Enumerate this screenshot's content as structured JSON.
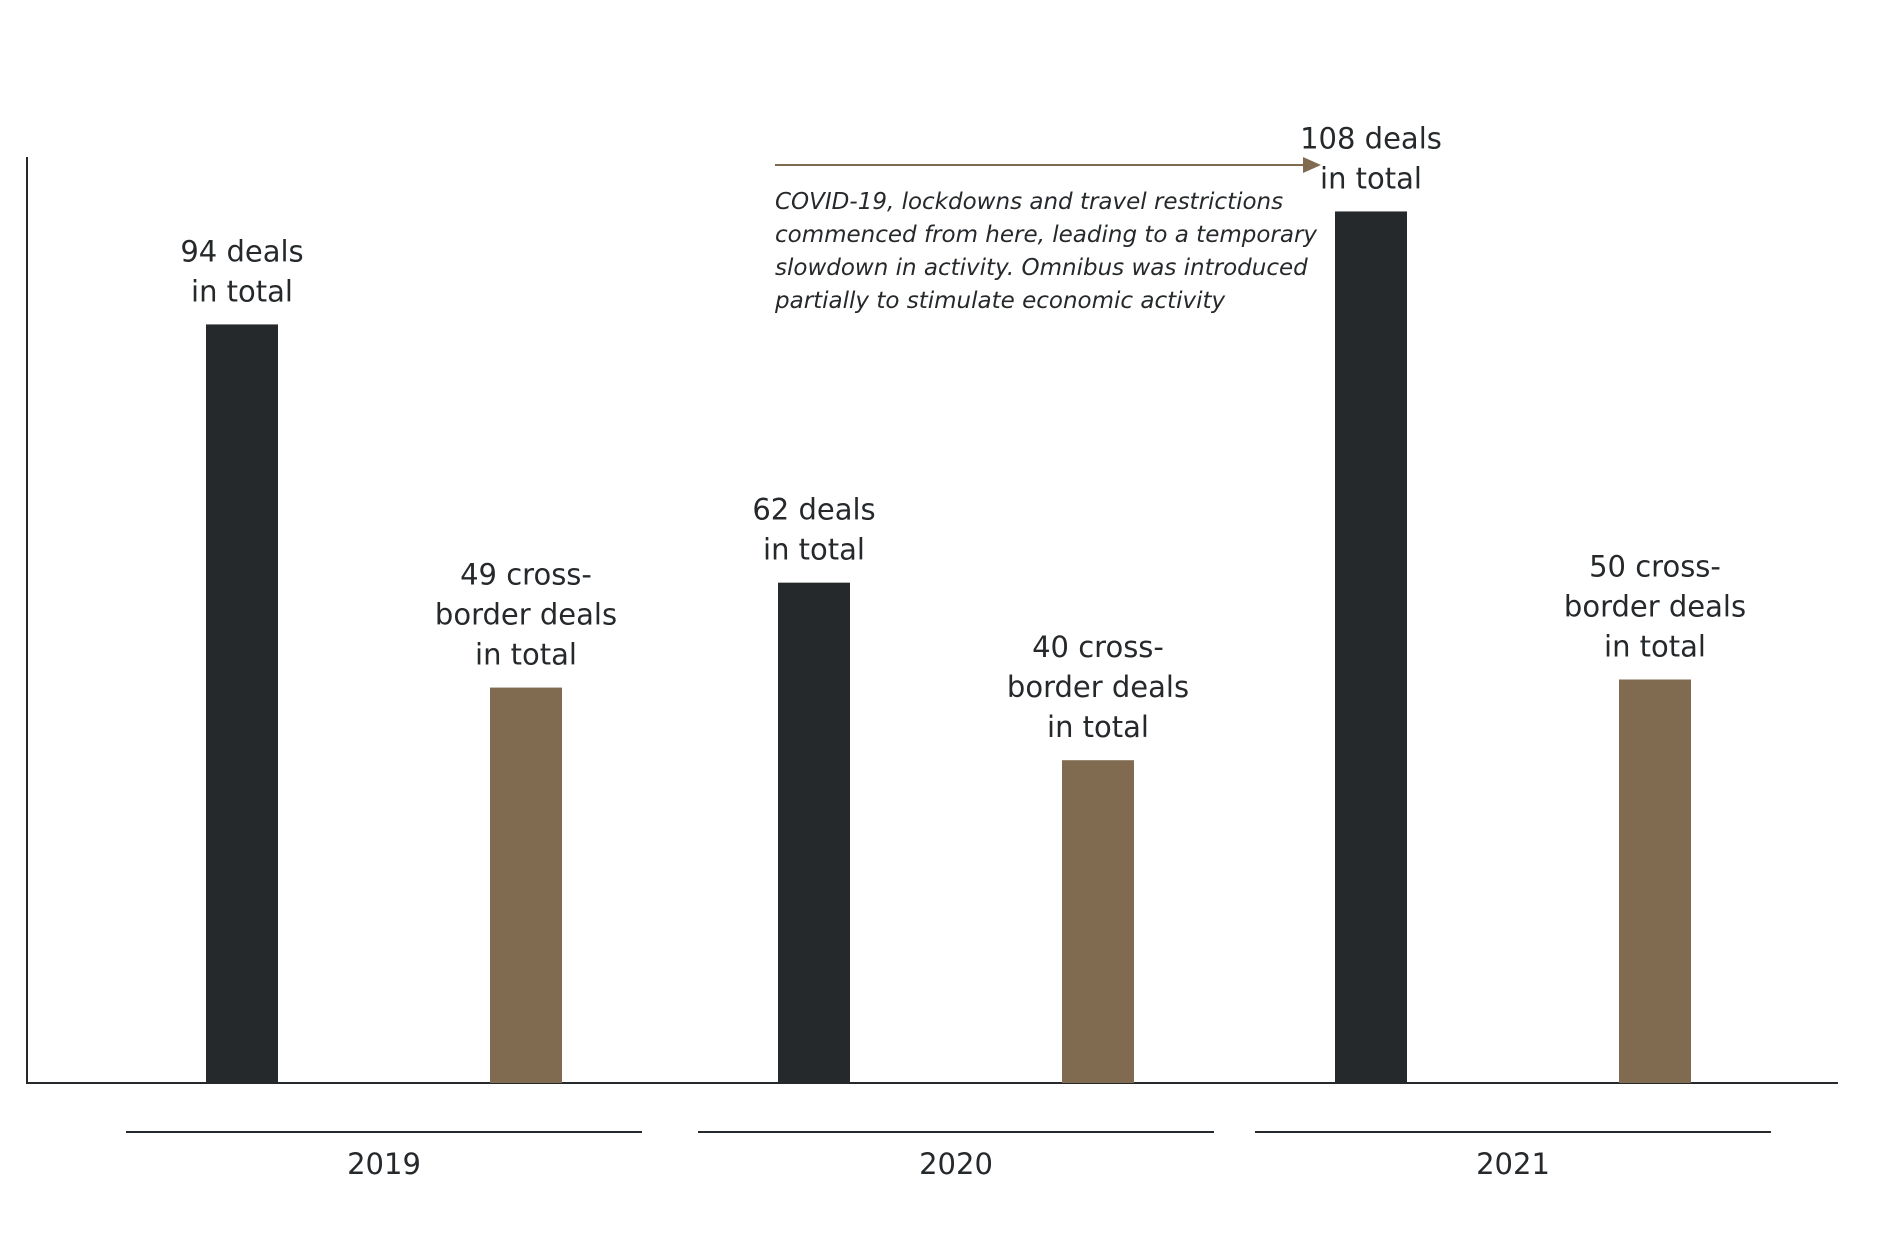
{
  "chart_data": {
    "type": "bar",
    "categories": [
      "2019",
      "2020",
      "2021"
    ],
    "series": [
      {
        "values": [
          94,
          62,
          108
        ],
        "color": "#26292b"
      },
      {
        "values": [
          49,
          40,
          50
        ],
        "color": "#806a50"
      }
    ],
    "data_labels": [
      [
        "94 deals",
        "in total"
      ],
      [
        "49 cross-",
        "border deals",
        "in total"
      ],
      [
        "62 deals",
        "in total"
      ],
      [
        "40 cross-",
        "border deals",
        "in total"
      ],
      [
        "108 deals",
        "in total"
      ],
      [
        "50 cross-",
        "border deals",
        "in total"
      ]
    ],
    "annotation": {
      "lines": [
        "COVID-19, lockdowns and travel restrictions",
        "commenced from here, leading to a temporary",
        "slowdown in activity. Omnibus was introduced",
        "partially to stimulate economic activity"
      ],
      "arrow_color": "#806a50"
    },
    "ylim": [
      0,
      115
    ],
    "grid": false,
    "legend": "none"
  }
}
